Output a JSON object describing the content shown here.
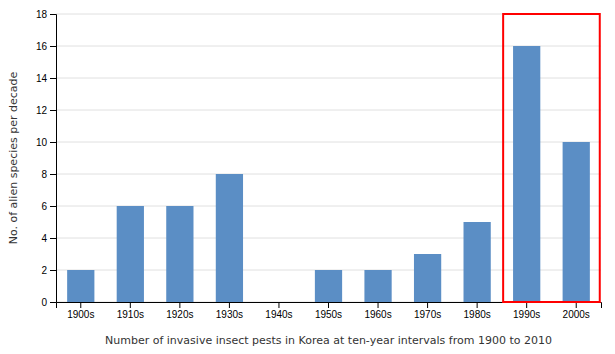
{
  "chart_data": {
    "type": "bar",
    "categories": [
      "1900s",
      "1910s",
      "1920s",
      "1930s",
      "1940s",
      "1950s",
      "1960s",
      "1970s",
      "1980s",
      "1990s",
      "2000s"
    ],
    "values": [
      2,
      6,
      6,
      8,
      0,
      2,
      2,
      3,
      5,
      16,
      10
    ],
    "color": "#5b8ec5",
    "ylim": [
      0,
      18
    ],
    "yticks": [
      0,
      2,
      4,
      6,
      8,
      10,
      12,
      14,
      16,
      18
    ],
    "ylabel": "No. of alien species per decade",
    "xlabel": "Number of invasive insect pests in Korea at ten-year intervals from 1900 to 2010",
    "grid": true,
    "annotations": [
      {
        "type": "rect",
        "categories": [
          "1990s",
          "2000s"
        ],
        "color": "red"
      }
    ]
  }
}
